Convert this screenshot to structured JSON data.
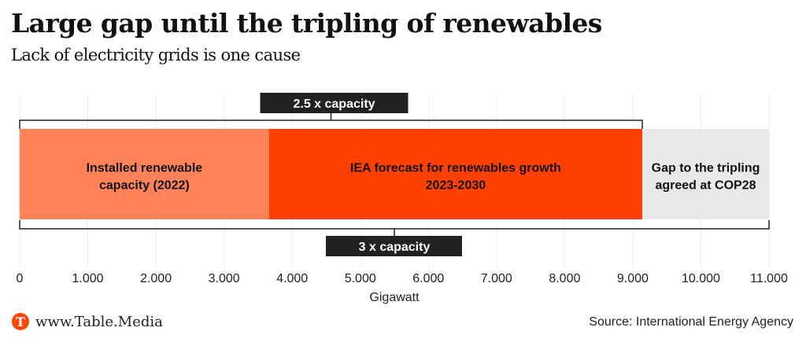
{
  "header": {
    "title": "Large gap until the tripling of renewables",
    "subtitle": "Lack of electricity grids is one cause"
  },
  "footer": {
    "logo_letter": "T",
    "brand": "www.Table.Media",
    "source": "Source: International Energy Agency"
  },
  "colors": {
    "installed": "#ff8259",
    "forecast": "#ff4000",
    "gap": "#e9e9e9",
    "annotation_box": "#222222",
    "gridline": "#eeeeee"
  },
  "chart_data": {
    "type": "bar",
    "orientation": "horizontal-stacked",
    "title": "Large gap until the tripling of renewables",
    "subtitle": "Lack of electricity grids is one cause",
    "xlabel": "Gigawatt",
    "ylabel": "",
    "xlim": [
      0,
      11000
    ],
    "grid": true,
    "xticks": [
      0,
      1000,
      2000,
      3000,
      4000,
      5000,
      6000,
      7000,
      8000,
      9000,
      10000,
      11000
    ],
    "xtick_labels": [
      "0",
      "1.000",
      "2.000",
      "3.000",
      "4.000",
      "5.000",
      "6.000",
      "7.000",
      "8.000",
      "9.000",
      "10.000",
      "11.000"
    ],
    "segments": [
      {
        "name": "installed",
        "label_lines": [
          "Installed renewable",
          "capacity (2022)"
        ],
        "start": 0,
        "end": 3660,
        "value": 3660
      },
      {
        "name": "forecast",
        "label_lines": [
          "IEA forecast for renewables growth",
          "2023-2030"
        ],
        "start": 3660,
        "end": 9140,
        "value": 5480
      },
      {
        "name": "gap",
        "label_lines": [
          "Gap to the tripling",
          "agreed at COP28"
        ],
        "start": 9140,
        "end": 11000,
        "value": 1860
      }
    ],
    "annotations": [
      {
        "name": "top-bracket",
        "label": "2.5 x capacity",
        "start": 0,
        "end": 9140,
        "position": "above"
      },
      {
        "name": "bottom-bracket",
        "label": "3 x capacity",
        "start": 0,
        "end": 11000,
        "position": "below"
      }
    ]
  }
}
